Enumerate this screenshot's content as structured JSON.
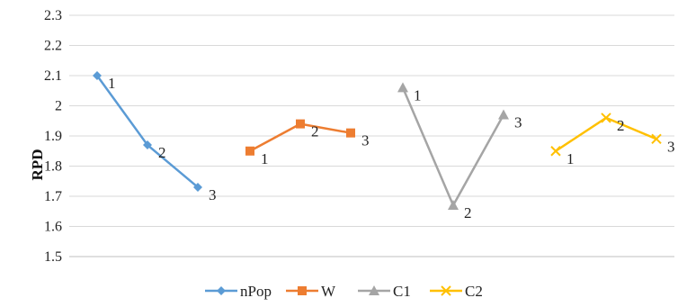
{
  "chart_data": {
    "type": "line",
    "title": "",
    "xlabel": "",
    "ylabel": "RPD",
    "ylim": [
      1.5,
      2.3
    ],
    "yticks": [
      "1.5",
      "1.6",
      "1.7",
      "1.8",
      "1.9",
      "2",
      "2.1",
      "2.2",
      "2.3"
    ],
    "grid": true,
    "legend": "bottom",
    "series": [
      {
        "name": "nPop",
        "color": "#5B9BD5",
        "marker": "diamond-marker",
        "points": [
          {
            "label": "1",
            "value": 2.1
          },
          {
            "label": "2",
            "value": 1.87
          },
          {
            "label": "3",
            "value": 1.73
          }
        ]
      },
      {
        "name": "W",
        "color": "#ED7D31",
        "marker": "square-marker",
        "points": [
          {
            "label": "1",
            "value": 1.85
          },
          {
            "label": "2",
            "value": 1.94
          },
          {
            "label": "3",
            "value": 1.91
          }
        ]
      },
      {
        "name": "C1",
        "color": "#A5A5A5",
        "marker": "triangle-marker",
        "points": [
          {
            "label": "1",
            "value": 2.06
          },
          {
            "label": "2",
            "value": 1.67
          },
          {
            "label": "3",
            "value": 1.97
          }
        ]
      },
      {
        "name": "C2",
        "color": "#FFC000",
        "marker": "x-marker",
        "points": [
          {
            "label": "1",
            "value": 1.85
          },
          {
            "label": "2",
            "value": 1.96
          },
          {
            "label": "3",
            "value": 1.89
          }
        ]
      }
    ]
  }
}
